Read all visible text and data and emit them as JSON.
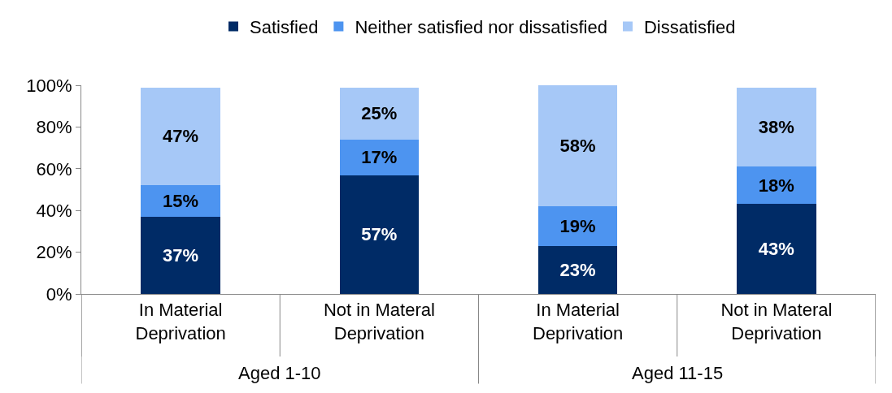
{
  "chart_data": {
    "type": "bar",
    "stacked": true,
    "legend": "top",
    "grid": false,
    "categories": [
      "In Material Deprivation",
      "Not in Materal Deprivation",
      "In Material Deprivation",
      "Not in Materal Deprivation"
    ],
    "series": [
      {
        "name": "Satisfied",
        "color": "#002b66",
        "values": [
          37,
          57,
          23,
          43
        ],
        "value_labels": [
          "37%",
          "57%",
          "23%",
          "43%"
        ]
      },
      {
        "name": "Neither satisfied nor dissatisfied",
        "color": "#4d94f0",
        "values": [
          15,
          17,
          19,
          18
        ],
        "value_labels": [
          "15%",
          "17%",
          "19%",
          "18%"
        ]
      },
      {
        "name": "Dissatisfied",
        "color": "#a6c8f7",
        "values": [
          47,
          25,
          58,
          38
        ],
        "value_labels": [
          "47%",
          "25%",
          "58%",
          "38%"
        ]
      }
    ],
    "ylim": [
      0,
      100
    ],
    "yticks": [
      {
        "value": 0,
        "label": "0%"
      },
      {
        "value": 20,
        "label": "20%"
      },
      {
        "value": 40,
        "label": "40%"
      },
      {
        "value": 60,
        "label": "60%"
      },
      {
        "value": 80,
        "label": "80%"
      },
      {
        "value": 100,
        "label": "100%"
      }
    ],
    "annotations": [
      "Aged 1-10",
      "Aged 11-15"
    ]
  }
}
